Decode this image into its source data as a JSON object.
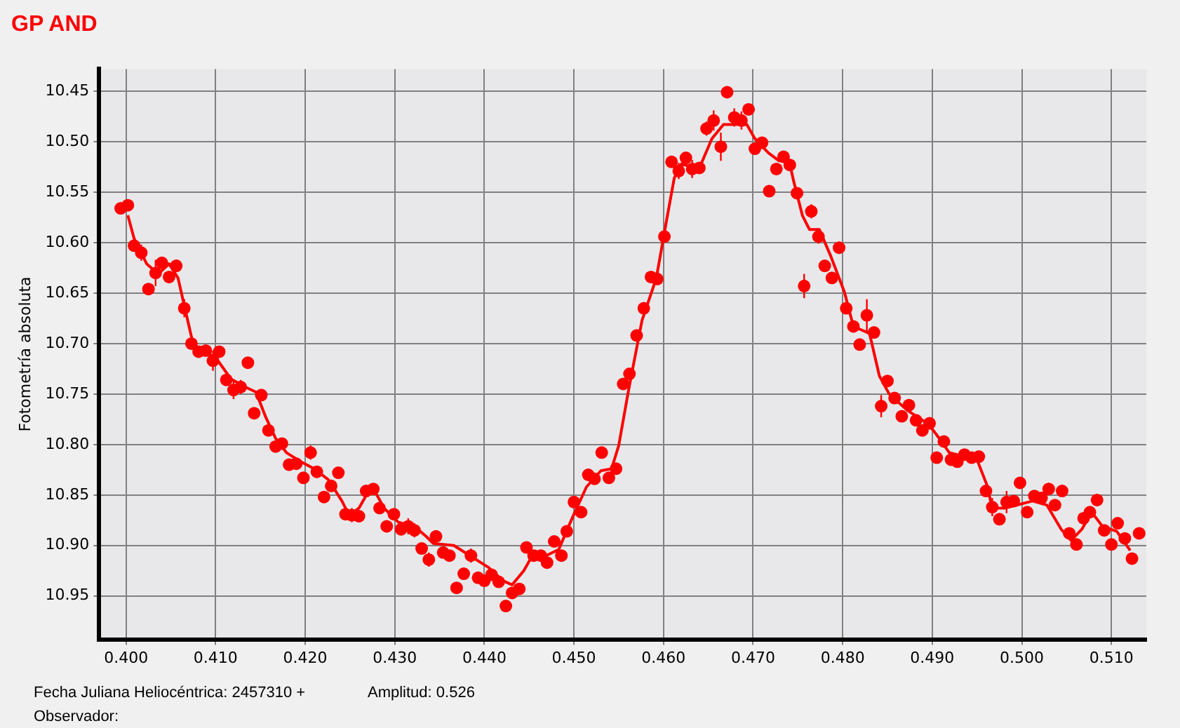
{
  "chart_data": {
    "type": "scatter",
    "title": "GP AND",
    "xlabel": "Fecha Juliana Heliocéntrica: 2457310 +",
    "ylabel": "Fotometría absoluta",
    "annotations": [
      "Amplitud: 0.526",
      "Observador:"
    ],
    "xlim": [
      0.397,
      0.5139
    ],
    "ylim": [
      10.993,
      10.428
    ],
    "xticks": [
      {
        "value": 0.4,
        "label": "0.400"
      },
      {
        "value": 0.41,
        "label": "0.410"
      },
      {
        "value": 0.42,
        "label": "0.420"
      },
      {
        "value": 0.43,
        "label": "0.430"
      },
      {
        "value": 0.44,
        "label": "0.440"
      },
      {
        "value": 0.45,
        "label": "0.450"
      },
      {
        "value": 0.46,
        "label": "0.460"
      },
      {
        "value": 0.47,
        "label": "0.470"
      },
      {
        "value": 0.48,
        "label": "0.480"
      },
      {
        "value": 0.49,
        "label": "0.490"
      },
      {
        "value": 0.5,
        "label": "0.500"
      },
      {
        "value": 0.51,
        "label": "0.510"
      }
    ],
    "yticks": [
      {
        "value": 10.45,
        "label": "10.45"
      },
      {
        "value": 10.5,
        "label": "10.50"
      },
      {
        "value": 10.55,
        "label": "10.55"
      },
      {
        "value": 10.6,
        "label": "10.60"
      },
      {
        "value": 10.65,
        "label": "10.65"
      },
      {
        "value": 10.7,
        "label": "10.70"
      },
      {
        "value": 10.75,
        "label": "10.75"
      },
      {
        "value": 10.8,
        "label": "10.80"
      },
      {
        "value": 10.85,
        "label": "10.85"
      },
      {
        "value": 10.9,
        "label": "10.90"
      },
      {
        "value": 10.95,
        "label": "10.95"
      }
    ],
    "grid": true,
    "marker": "circle",
    "series": [
      {
        "type": "scatter",
        "color": "#ff0000",
        "x": [
          0.3994,
          0.4002,
          0.4009,
          0.4017,
          0.4025,
          0.4033,
          0.404,
          0.4048,
          0.4056,
          0.4065,
          0.4073,
          0.4081,
          0.4089,
          0.4097,
          0.4104,
          0.4112,
          0.412,
          0.4128,
          0.4136,
          0.4143,
          0.4151,
          0.4159,
          0.4167,
          0.4174,
          0.4182,
          0.419,
          0.4198,
          0.4206,
          0.4213,
          0.4221,
          0.4229,
          0.4237,
          0.4245,
          0.4252,
          0.426,
          0.4268,
          0.4276,
          0.4283,
          0.4291,
          0.4299,
          0.4307,
          0.4315,
          0.4322,
          0.433,
          0.4338,
          0.4346,
          0.4354,
          0.4361,
          0.4369,
          0.4377,
          0.4385,
          0.4393,
          0.44,
          0.4408,
          0.4416,
          0.4424,
          0.4431,
          0.4439,
          0.4447,
          0.4455,
          0.4463,
          0.447,
          0.4478,
          0.4486,
          0.4492,
          0.45,
          0.4508,
          0.4516,
          0.4523,
          0.4531,
          0.4539,
          0.4547,
          0.4555,
          0.4562,
          0.457,
          0.4578,
          0.4586,
          0.4593,
          0.4601,
          0.4609,
          0.4617,
          0.4625,
          0.4632,
          0.464,
          0.4648,
          0.4656,
          0.4664,
          0.4671,
          0.4679,
          0.4687,
          0.4695,
          0.4702,
          0.471,
          0.4718,
          0.4726,
          0.4734,
          0.4741,
          0.4749,
          0.4757,
          0.4765,
          0.4773,
          0.478,
          0.4788,
          0.4796,
          0.4804,
          0.4812,
          0.4819,
          0.4827,
          0.4835,
          0.4843,
          0.485,
          0.4858,
          0.4866,
          0.4874,
          0.4882,
          0.4889,
          0.4897,
          0.4905,
          0.4913,
          0.4921,
          0.4928,
          0.4936,
          0.4944,
          0.4952,
          0.496,
          0.4967,
          0.4975,
          0.4983,
          0.4991,
          0.4998,
          0.5006,
          0.5014,
          0.5022,
          0.503,
          0.5037,
          0.5045,
          0.5053,
          0.5061,
          0.5069,
          0.5076,
          0.5084,
          0.5092,
          0.51,
          0.5107,
          0.5115,
          0.5123,
          0.5131
        ],
        "values": [
          10.566,
          10.563,
          10.603,
          10.61,
          10.646,
          10.63,
          10.62,
          10.634,
          10.623,
          10.665,
          10.7,
          10.708,
          10.707,
          10.717,
          10.708,
          10.736,
          10.746,
          10.743,
          10.719,
          10.769,
          10.751,
          10.786,
          10.802,
          10.799,
          10.82,
          10.819,
          10.833,
          10.808,
          10.827,
          10.852,
          10.841,
          10.828,
          10.869,
          10.87,
          10.871,
          10.846,
          10.844,
          10.863,
          10.881,
          10.869,
          10.884,
          10.881,
          10.885,
          10.903,
          10.914,
          10.891,
          10.907,
          10.91,
          10.942,
          10.928,
          10.91,
          10.932,
          10.935,
          10.929,
          10.936,
          10.96,
          10.947,
          10.943,
          10.902,
          10.91,
          10.91,
          10.917,
          10.896,
          10.91,
          10.886,
          10.857,
          10.867,
          10.83,
          10.834,
          10.808,
          10.833,
          10.824,
          10.74,
          10.73,
          10.692,
          10.665,
          10.634,
          10.636,
          10.594,
          10.52,
          10.529,
          10.516,
          10.527,
          10.526,
          10.487,
          10.479,
          10.505,
          10.451,
          10.476,
          10.479,
          10.468,
          10.507,
          10.501,
          10.549,
          10.527,
          10.515,
          10.523,
          10.551,
          10.643,
          10.569,
          10.594,
          10.623,
          10.635,
          10.605,
          10.665,
          10.683,
          10.701,
          10.672,
          10.689,
          10.762,
          10.737,
          10.754,
          10.772,
          10.761,
          10.776,
          10.786,
          10.779,
          10.813,
          10.797,
          10.815,
          10.817,
          10.81,
          10.813,
          10.812,
          10.846,
          10.862,
          10.874,
          10.857,
          10.856,
          10.838,
          10.867,
          10.851,
          10.853,
          10.844,
          10.86,
          10.846,
          10.888,
          10.899,
          10.873,
          10.867,
          10.855,
          10.885,
          10.899,
          10.878,
          10.893,
          10.913,
          10.888
        ],
        "errors": [
          null,
          null,
          null,
          0.008,
          null,
          0.013,
          null,
          null,
          null,
          0.009,
          null,
          null,
          null,
          0.01,
          null,
          null,
          0.009,
          0.007,
          null,
          null,
          null,
          null,
          null,
          null,
          null,
          null,
          null,
          0.007,
          0.006,
          null,
          null,
          null,
          null,
          0.007,
          null,
          null,
          null,
          null,
          null,
          null,
          null,
          0.008,
          0.007,
          null,
          0.007,
          null,
          null,
          null,
          null,
          null,
          0.007,
          null,
          null,
          null,
          null,
          null,
          null,
          null,
          null,
          null,
          null,
          0.006,
          null,
          null,
          null,
          null,
          null,
          null,
          null,
          null,
          null,
          null,
          null,
          null,
          null,
          null,
          null,
          null,
          null,
          null,
          0.008,
          null,
          0.009,
          null,
          0.007,
          0.01,
          0.014,
          null,
          0.009,
          0.009,
          null,
          null,
          null,
          null,
          null,
          null,
          null,
          null,
          0.012,
          0.007,
          0.007,
          null,
          null,
          0.006,
          null,
          null,
          null,
          0.016,
          null,
          0.011,
          null,
          null,
          null,
          null,
          null,
          null,
          0.006,
          null,
          null,
          0.006,
          0.006,
          null,
          null,
          null,
          null,
          0.009,
          null,
          0.011,
          null,
          null,
          null,
          null,
          null,
          0.006,
          null,
          null,
          null,
          null,
          null,
          null,
          0.006,
          null,
          null,
          null,
          null,
          0.005,
          null
        ]
      },
      {
        "type": "line",
        "color": "#ff0000",
        "marker": "none",
        "line_style": "solid",
        "x": [
          0.4002,
          0.4009,
          0.4023,
          0.4036,
          0.4048,
          0.4058,
          0.4067,
          0.4075,
          0.4086,
          0.4101,
          0.4117,
          0.4133,
          0.4145,
          0.4156,
          0.4167,
          0.4179,
          0.4195,
          0.421,
          0.4226,
          0.4241,
          0.4249,
          0.426,
          0.4269,
          0.4277,
          0.4288,
          0.4304,
          0.4322,
          0.4335,
          0.4343,
          0.4366,
          0.4382,
          0.4405,
          0.4421,
          0.4431,
          0.4444,
          0.4453,
          0.4467,
          0.4483,
          0.4498,
          0.4514,
          0.453,
          0.4542,
          0.455,
          0.4561,
          0.4576,
          0.4592,
          0.4603,
          0.4612,
          0.462,
          0.4631,
          0.4642,
          0.4654,
          0.4667,
          0.4693,
          0.4702,
          0.4717,
          0.4729,
          0.474,
          0.4745,
          0.4755,
          0.4763,
          0.4774,
          0.4787,
          0.4802,
          0.4812,
          0.483,
          0.4841,
          0.4852,
          0.4872,
          0.4896,
          0.4908,
          0.4919,
          0.495,
          0.4961,
          0.4967,
          0.4981,
          0.5012,
          0.5028,
          0.5044,
          0.5055,
          0.5067,
          0.5078,
          0.509,
          0.5106,
          0.5121
        ],
        "values": [
          10.573,
          10.596,
          10.621,
          10.631,
          10.621,
          10.635,
          10.67,
          10.701,
          10.707,
          10.715,
          10.735,
          10.743,
          10.748,
          10.773,
          10.794,
          10.808,
          10.817,
          10.824,
          10.835,
          10.856,
          10.87,
          10.863,
          10.849,
          10.845,
          10.863,
          10.877,
          10.881,
          10.891,
          10.898,
          10.9,
          10.909,
          10.922,
          10.935,
          10.939,
          10.925,
          10.911,
          10.911,
          10.904,
          10.873,
          10.842,
          10.826,
          10.824,
          10.801,
          10.746,
          10.677,
          10.635,
          10.58,
          10.536,
          10.522,
          10.525,
          10.522,
          10.497,
          10.483,
          10.483,
          10.497,
          10.511,
          10.519,
          10.518,
          10.538,
          10.573,
          10.587,
          10.587,
          10.614,
          10.649,
          10.683,
          10.69,
          10.732,
          10.75,
          10.766,
          10.78,
          10.794,
          10.808,
          10.815,
          10.84,
          10.863,
          10.863,
          10.856,
          10.86,
          10.884,
          10.895,
          10.884,
          10.867,
          10.881,
          10.886,
          10.905
        ]
      }
    ]
  }
}
